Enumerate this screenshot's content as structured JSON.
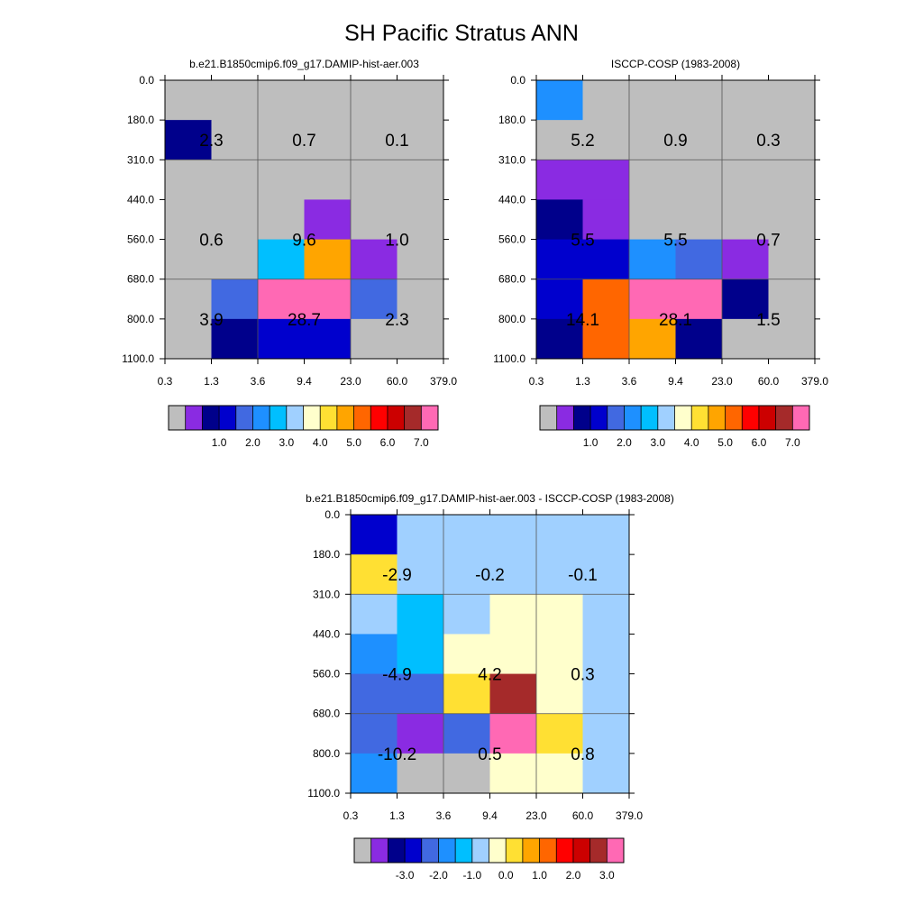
{
  "title": "SH Pacific Stratus ANN",
  "axes": {
    "x_ticks": [
      "0.3",
      "1.3",
      "3.6",
      "9.4",
      "23.0",
      "60.0",
      "379.0"
    ],
    "y_ticks": [
      "0.0",
      "180.0",
      "310.0",
      "440.0",
      "560.0",
      "680.0",
      "800.0",
      "1100.0"
    ]
  },
  "colors": {
    "abs_palette": [
      "#bebebe",
      "#8a2be2",
      "#00008b",
      "#0000cd",
      "#4169e1",
      "#1e90ff",
      "#00bfff",
      "#a0d0ff",
      "#ffffcc",
      "#ffe033",
      "#ffa500",
      "#ff6600",
      "#ff0000",
      "#cc0000",
      "#a52a2a",
      "#ff69b4"
    ],
    "diff_palette": [
      "#bebebe",
      "#8a2be2",
      "#00008b",
      "#0000cd",
      "#4169e1",
      "#1e90ff",
      "#00bfff",
      "#a0d0ff",
      "#ffffcc",
      "#ffe033",
      "#ffa500",
      "#ff6600",
      "#ff0000",
      "#cc0000",
      "#a52a2a",
      "#ff69b4"
    ]
  },
  "chart_data": [
    {
      "type": "heatmap",
      "title": "b.e21.B1850cmip6.f09_g17.DAMIP-hist-aer.003",
      "x_edges": [
        0.3,
        1.3,
        3.6,
        9.4,
        23.0,
        60.0,
        379.0
      ],
      "y_edges": [
        0.0,
        180.0,
        310.0,
        440.0,
        560.0,
        680.0,
        800.0,
        1100.0
      ],
      "palette": "abs_palette",
      "cells": [
        [
          0,
          0,
          0,
          0,
          0,
          0
        ],
        [
          2,
          0,
          0,
          0,
          0,
          0
        ],
        [
          0,
          0,
          0,
          0,
          0,
          0
        ],
        [
          0,
          0,
          0,
          1,
          0,
          0
        ],
        [
          0,
          0,
          6,
          10,
          1,
          0
        ],
        [
          0,
          4,
          15,
          15,
          4,
          0
        ],
        [
          0,
          2,
          3,
          3,
          0,
          0
        ]
      ],
      "summary_labels": [
        "2.3",
        "0.7",
        "0.1",
        "0.6",
        "9.6",
        "1.0",
        "3.9",
        "28.7",
        "2.3"
      ],
      "colorbar_labels": [
        "1.0",
        "2.0",
        "3.0",
        "4.0",
        "5.0",
        "6.0",
        "7.0"
      ]
    },
    {
      "type": "heatmap",
      "title": "ISCCP-COSP (1983-2008)",
      "x_edges": [
        0.3,
        1.3,
        3.6,
        9.4,
        23.0,
        60.0,
        379.0
      ],
      "y_edges": [
        0.0,
        180.0,
        310.0,
        440.0,
        560.0,
        680.0,
        800.0,
        1100.0
      ],
      "palette": "abs_palette",
      "cells": [
        [
          5,
          0,
          0,
          0,
          0,
          0
        ],
        [
          0,
          0,
          0,
          0,
          0,
          0
        ],
        [
          1,
          1,
          0,
          0,
          0,
          0
        ],
        [
          2,
          1,
          0,
          0,
          0,
          0
        ],
        [
          3,
          3,
          5,
          4,
          1,
          0
        ],
        [
          3,
          11,
          15,
          15,
          2,
          0
        ],
        [
          2,
          11,
          10,
          2,
          0,
          0
        ]
      ],
      "summary_labels": [
        "5.2",
        "0.9",
        "0.3",
        "5.5",
        "5.5",
        "0.7",
        "14.1",
        "28.1",
        "1.5"
      ],
      "colorbar_labels": [
        "1.0",
        "2.0",
        "3.0",
        "4.0",
        "5.0",
        "6.0",
        "7.0"
      ]
    },
    {
      "type": "heatmap",
      "title": "b.e21.B1850cmip6.f09_g17.DAMIP-hist-aer.003 - ISCCP-COSP (1983-2008)",
      "x_edges": [
        0.3,
        1.3,
        3.6,
        9.4,
        23.0,
        60.0,
        379.0
      ],
      "y_edges": [
        0.0,
        180.0,
        310.0,
        440.0,
        560.0,
        680.0,
        800.0,
        1100.0
      ],
      "palette": "diff_palette",
      "cells": [
        [
          3,
          7,
          7,
          7,
          7,
          7
        ],
        [
          9,
          7,
          7,
          7,
          7,
          7
        ],
        [
          7,
          6,
          7,
          8,
          8,
          7
        ],
        [
          5,
          6,
          8,
          8,
          8,
          7
        ],
        [
          4,
          4,
          9,
          14,
          8,
          7
        ],
        [
          4,
          1,
          4,
          15,
          9,
          7
        ],
        [
          5,
          0,
          0,
          8,
          8,
          7
        ]
      ],
      "summary_labels": [
        "-2.9",
        "-0.2",
        "-0.1",
        "-4.9",
        "4.2",
        "0.3",
        "-10.2",
        "0.5",
        "0.8"
      ],
      "colorbar_labels": [
        "-3.0",
        "-2.0",
        "-1.0",
        "0.0",
        "1.0",
        "2.0",
        "3.0"
      ]
    }
  ]
}
